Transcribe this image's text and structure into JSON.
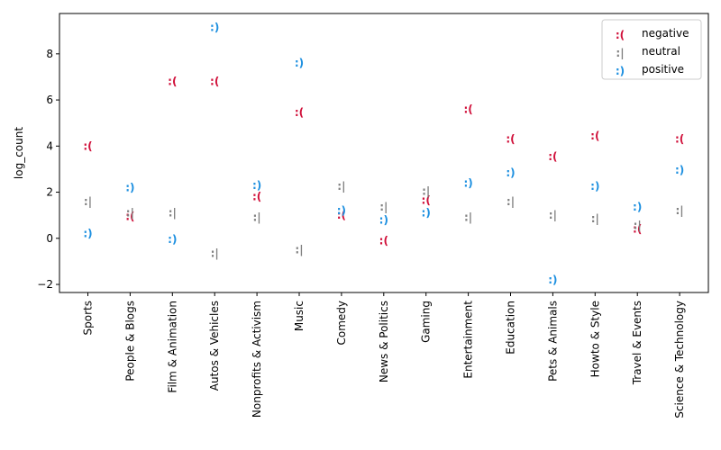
{
  "chart_data": {
    "type": "scatter",
    "title": "",
    "xlabel": "",
    "ylabel": "log_count",
    "ylim": [
      -2.35,
      9.75
    ],
    "yticks": [
      -2,
      0,
      2,
      4,
      6,
      8
    ],
    "grid": false,
    "legend_position": "top-right",
    "categories": [
      "Sports",
      "People & Blogs",
      "Film & Animation",
      "Autos & Vehicles",
      "Nonprofits & Activism",
      "Music",
      "Comedy",
      "News & Politics",
      "Gaming",
      "Entertainment",
      "Education",
      "Pets & Animals",
      "Howto & Style",
      "Travel & Events",
      "Science & Technology"
    ],
    "series": [
      {
        "name": "negative",
        "marker": ":(",
        "color": "#d0103a",
        "values": [
          4.0,
          0.95,
          6.8,
          6.8,
          1.8,
          5.45,
          1.0,
          -0.1,
          1.65,
          5.6,
          4.3,
          3.55,
          4.45,
          0.4,
          4.3
        ]
      },
      {
        "name": "neutral",
        "marker": ":|",
        "color": "#808080",
        "values": [
          1.6,
          1.1,
          1.1,
          -0.65,
          0.9,
          -0.5,
          2.25,
          1.35,
          2.05,
          0.9,
          1.6,
          1.0,
          0.85,
          0.55,
          1.2
        ]
      },
      {
        "name": "positive",
        "marker": ":)",
        "color": "#1e90e0",
        "values": [
          0.2,
          2.2,
          -0.05,
          9.15,
          2.3,
          7.6,
          1.2,
          0.8,
          1.1,
          2.4,
          2.85,
          -1.8,
          2.25,
          1.35,
          2.95
        ]
      }
    ]
  }
}
